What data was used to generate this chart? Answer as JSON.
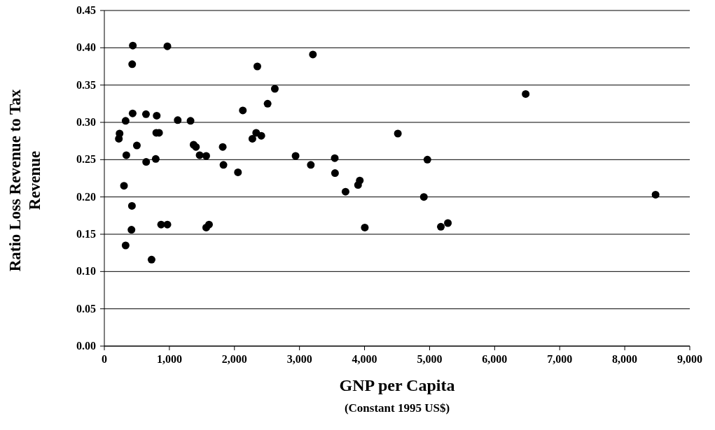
{
  "chart_data": {
    "type": "scatter",
    "xlabel": "GNP per Capita",
    "ylabel": "Ratio Loss Revenue to Tax Revenue",
    "annotations": [
      "(Constant 1995 US$)"
    ],
    "x": [
      438,
      969,
      428,
      3206,
      2352,
      2621,
      2510,
      2129,
      435,
      640,
      805,
      1128,
      1325,
      327,
      234,
      223,
      798,
      841,
      2334,
      2276,
      2413,
      500,
      1372,
      1408,
      1820,
      338,
      1465,
      1566,
      2940,
      643,
      790,
      1831,
      3174,
      2054,
      302,
      424,
      873,
      969,
      1566,
      1609,
      417,
      327,
      726,
      6477,
      4512,
      3542,
      4966,
      3546,
      3927,
      3900,
      3708,
      4912,
      8474,
      4004,
      5173,
      5281
    ],
    "values": [
      0.403,
      0.402,
      0.378,
      0.391,
      0.375,
      0.345,
      0.325,
      0.316,
      0.312,
      0.311,
      0.309,
      0.303,
      0.302,
      0.302,
      0.285,
      0.278,
      0.286,
      0.286,
      0.286,
      0.278,
      0.282,
      0.269,
      0.27,
      0.267,
      0.267,
      0.256,
      0.256,
      0.255,
      0.255,
      0.247,
      0.251,
      0.243,
      0.243,
      0.233,
      0.215,
      0.188,
      0.163,
      0.163,
      0.159,
      0.163,
      0.156,
      0.135,
      0.116,
      0.338,
      0.285,
      0.252,
      0.25,
      0.232,
      0.222,
      0.216,
      0.207,
      0.2,
      0.203,
      0.159,
      0.16,
      0.165
    ],
    "color": "#000000",
    "marker": "circle",
    "grid": "y",
    "xlim": [
      0,
      9000
    ],
    "xticks": [
      0,
      {
        "value": 1000,
        "label": "1,000"
      },
      {
        "value": 2000,
        "label": "2,000"
      },
      {
        "value": 3000,
        "label": "3,000"
      },
      {
        "value": 4000,
        "label": "4,000"
      },
      {
        "value": 5000,
        "label": "5,000"
      },
      {
        "value": 6000,
        "label": "6,000"
      },
      {
        "value": 7000,
        "label": "7,000"
      },
      {
        "value": 8000,
        "label": "8,000"
      },
      {
        "value": 9000,
        "label": "9,000"
      }
    ],
    "ylim": [
      0,
      0.45
    ],
    "yticks": [
      {
        "value": 0,
        "label": "0.00"
      },
      {
        "value": 0.05,
        "label": "0.05"
      },
      {
        "value": 0.1,
        "label": "0.10"
      },
      {
        "value": 0.15,
        "label": "0.15"
      },
      {
        "value": 0.2,
        "label": "0.20"
      },
      {
        "value": 0.25,
        "label": "0.25"
      },
      {
        "value": 0.3,
        "label": "0.30"
      },
      {
        "value": 0.35,
        "label": "0.35"
      },
      {
        "value": 0.4,
        "label": "0.40"
      },
      {
        "value": 0.45,
        "label": "0.45"
      }
    ]
  }
}
